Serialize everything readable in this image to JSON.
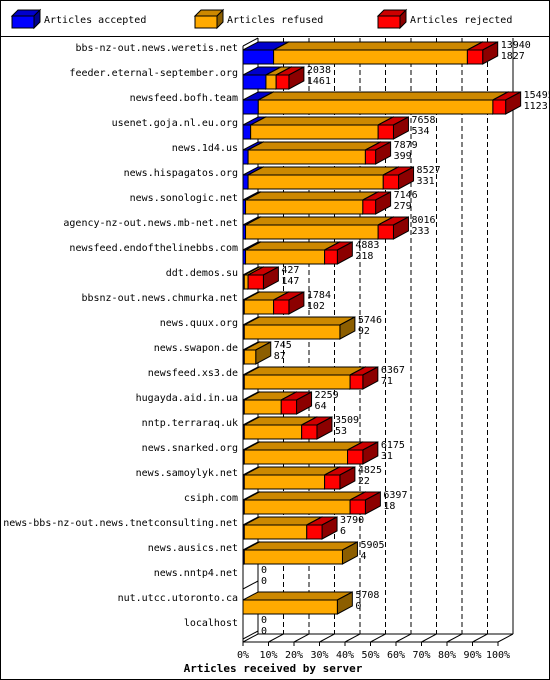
{
  "chart_data": {
    "type": "bar",
    "orientation": "horizontal",
    "stacked": true,
    "xlabel": "Articles received by server",
    "xlim": [
      0,
      100
    ],
    "x_ticks": [
      "0%",
      "10%",
      "20%",
      "30%",
      "40%",
      "50%",
      "60%",
      "70%",
      "80%",
      "90%",
      "100%"
    ],
    "legend_position": "top",
    "grid": true,
    "series": [
      {
        "name": "Articles accepted",
        "color": "#0000ff"
      },
      {
        "name": "Articles refused",
        "color": "#ffaa00"
      },
      {
        "name": "Articles rejected",
        "color": "#ff0000"
      }
    ],
    "categories": [
      "bbs-nz-out.news.weretis.net",
      "feeder.eternal-september.org",
      "newsfeed.bofh.team",
      "usenet.goja.nl.eu.org",
      "news.1d4.us",
      "news.hispagatos.org",
      "news.sonologic.net",
      "agency-nz-out.news.mb-net.net",
      "newsfeed.endofthelinebbs.com",
      "ddt.demos.su",
      "bbsnz-out.news.chmurka.net",
      "news.quux.org",
      "news.swapon.de",
      "newsfeed.xs3.de",
      "hugayda.aid.in.ua",
      "nntp.terraraq.uk",
      "news.snarked.org",
      "news.samoylyk.net",
      "csiph.com",
      "news-bbs-nz-out.news.tnetconsulting.net",
      "news.ausics.net",
      "news.nntp4.net",
      "nut.utcc.utoronto.ca",
      "localhost"
    ],
    "bars": [
      {
        "accepted": 12,
        "refused": 76,
        "rejected": 6
      },
      {
        "accepted": 9,
        "refused": 4,
        "rejected": 5
      },
      {
        "accepted": 6,
        "refused": 92,
        "rejected": 5
      },
      {
        "accepted": 3,
        "refused": 50,
        "rejected": 6
      },
      {
        "accepted": 2,
        "refused": 46,
        "rejected": 4
      },
      {
        "accepted": 2,
        "refused": 53,
        "rejected": 6
      },
      {
        "accepted": 1,
        "refused": 46,
        "rejected": 5
      },
      {
        "accepted": 1,
        "refused": 52,
        "rejected": 6
      },
      {
        "accepted": 1,
        "refused": 31,
        "rejected": 5
      },
      {
        "accepted": 0.5,
        "refused": 1.5,
        "rejected": 6
      },
      {
        "accepted": 0.5,
        "refused": 11.5,
        "rejected": 6
      },
      {
        "accepted": 0.5,
        "refused": 37.5,
        "rejected": 0
      },
      {
        "accepted": 0.5,
        "refused": 4.5,
        "rejected": 0
      },
      {
        "accepted": 0.5,
        "refused": 41.5,
        "rejected": 5
      },
      {
        "accepted": 0.5,
        "refused": 14.5,
        "rejected": 6
      },
      {
        "accepted": 0.5,
        "refused": 22.5,
        "rejected": 6
      },
      {
        "accepted": 0.5,
        "refused": 40.5,
        "rejected": 6
      },
      {
        "accepted": 0.5,
        "refused": 31.5,
        "rejected": 6
      },
      {
        "accepted": 0.5,
        "refused": 41.5,
        "rejected": 6
      },
      {
        "accepted": 0.5,
        "refused": 24.5,
        "rejected": 6
      },
      {
        "accepted": 0.5,
        "refused": 38.5,
        "rejected": 0
      },
      {
        "accepted": 0,
        "refused": 0,
        "rejected": 0
      },
      {
        "accepted": 0,
        "refused": 37,
        "rejected": 0
      },
      {
        "accepted": 0,
        "refused": 0,
        "rejected": 0
      }
    ],
    "value_labels": [
      [
        "13940",
        "1827"
      ],
      [
        "2038",
        "1461"
      ],
      [
        "15495",
        "1123"
      ],
      [
        "7658",
        "534"
      ],
      [
        "7879",
        "399"
      ],
      [
        "8527",
        "331"
      ],
      [
        "7146",
        "279"
      ],
      [
        "8016",
        "233"
      ],
      [
        "4883",
        "218"
      ],
      [
        "427",
        "147"
      ],
      [
        "1784",
        "102"
      ],
      [
        "5746",
        "92"
      ],
      [
        "745",
        "87"
      ],
      [
        "6367",
        "71"
      ],
      [
        "2259",
        "64"
      ],
      [
        "3509",
        "53"
      ],
      [
        "6175",
        "31"
      ],
      [
        "4825",
        "22"
      ],
      [
        "6397",
        "18"
      ],
      [
        "3790",
        "6"
      ],
      [
        "5905",
        "4"
      ],
      [
        "0",
        "0"
      ],
      [
        "5708",
        "0"
      ],
      [
        "0",
        "0"
      ]
    ]
  }
}
